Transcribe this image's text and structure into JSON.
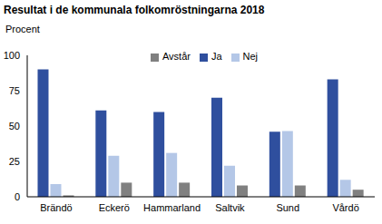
{
  "chart_data": {
    "type": "bar",
    "title": "Resultat i de kommunala folkomröstningarna 2018",
    "y_label": "Procent",
    "categories": [
      "Brändö",
      "Eckerö",
      "Hammarland",
      "Saltvik",
      "Sund",
      "Vårdö"
    ],
    "series": [
      {
        "name": "Ja",
        "color": "#2f4f9e",
        "values": [
          90,
          61,
          60,
          70,
          46,
          83
        ]
      },
      {
        "name": "Nej",
        "color": "#b4c7e7",
        "values": [
          9,
          29,
          31,
          22,
          46.5,
          12
        ]
      },
      {
        "name": "Avstår",
        "color": "#808080",
        "values": [
          1,
          10,
          10,
          8,
          8,
          5
        ]
      }
    ],
    "ylim": [
      0,
      100
    ],
    "yticks": [
      0,
      25,
      50,
      75,
      100
    ],
    "grid": false,
    "legend": "top"
  }
}
